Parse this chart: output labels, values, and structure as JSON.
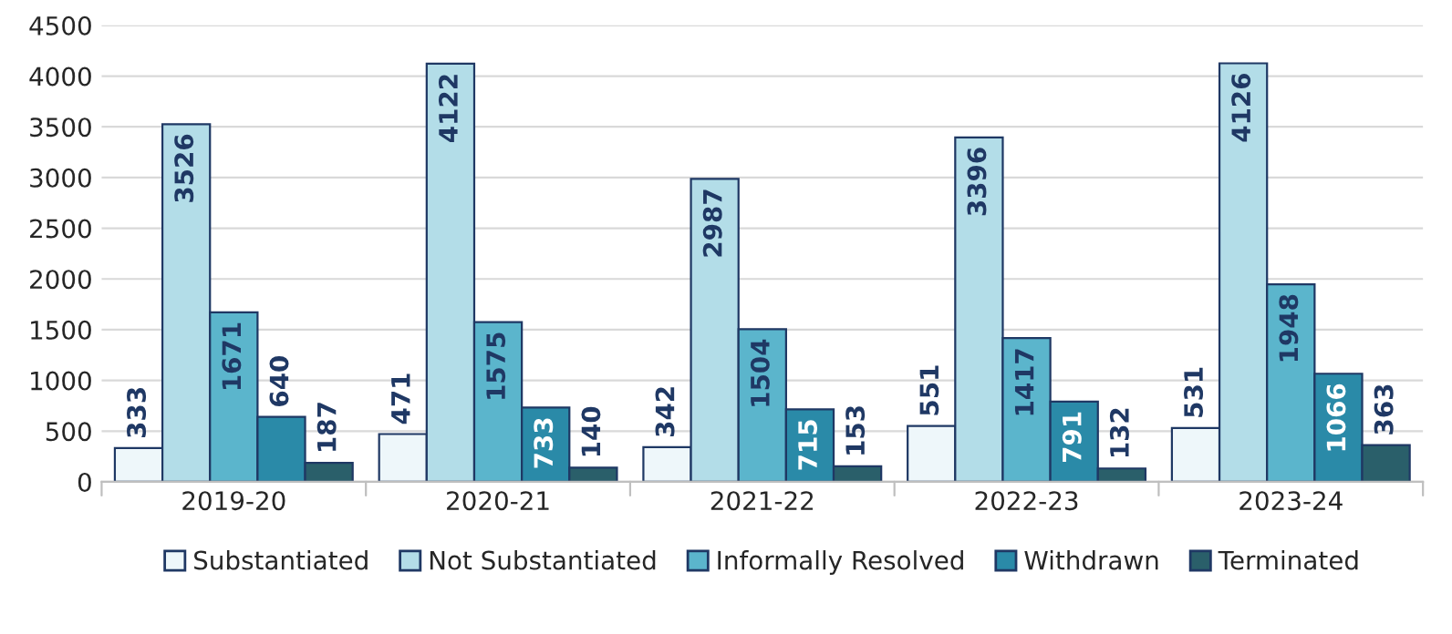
{
  "chart_data": {
    "type": "bar",
    "categories": [
      "2019-20",
      "2020-21",
      "2021-22",
      "2022-23",
      "2023-24"
    ],
    "series": [
      {
        "name": "Substantiated",
        "color": "#eef7fa",
        "values": [
          333,
          471,
          342,
          551,
          531
        ]
      },
      {
        "name": "Not Substantiated",
        "color": "#b3dde8",
        "values": [
          3526,
          4122,
          2987,
          3396,
          4126
        ]
      },
      {
        "name": "Informally Resolved",
        "color": "#5bb5cc",
        "values": [
          1671,
          1575,
          1504,
          1417,
          1948
        ]
      },
      {
        "name": "Withdrawn",
        "color": "#2a8aa8",
        "values": [
          640,
          733,
          715,
          791,
          1066
        ]
      },
      {
        "name": "Terminated",
        "color": "#2a5f6a",
        "values": [
          187,
          140,
          153,
          132,
          363
        ]
      }
    ],
    "ylim": [
      0,
      4500
    ],
    "yticks": [
      0,
      500,
      1000,
      1500,
      2000,
      2500,
      3000,
      3500,
      4000,
      4500
    ],
    "grid": "y",
    "legend": "bottom",
    "data_labels": true
  }
}
